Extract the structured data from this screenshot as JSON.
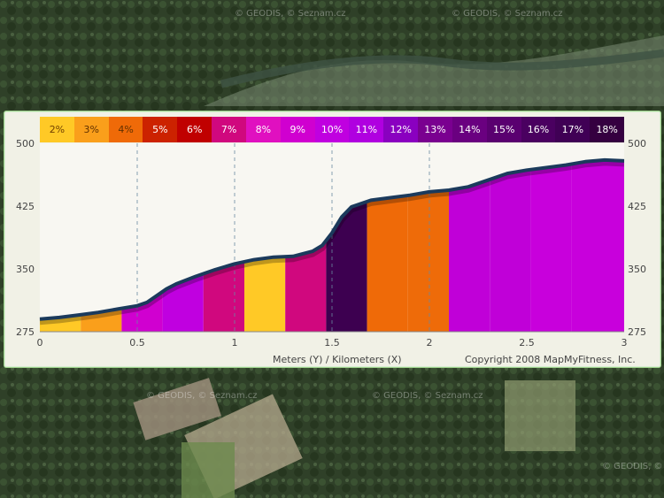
{
  "map": {
    "watermark": "© GEODIS, © Seznam.cz"
  },
  "legend": [
    {
      "label": "2%",
      "color": "#ffc926",
      "text": "#704000"
    },
    {
      "label": "3%",
      "color": "#fa9f1b",
      "text": "#603000"
    },
    {
      "label": "4%",
      "color": "#ef6a08",
      "text": "#603000"
    },
    {
      "label": "5%",
      "color": "#cc2200",
      "text": "#ffffff"
    },
    {
      "label": "6%",
      "color": "#c00000",
      "text": "#ffffff"
    },
    {
      "label": "7%",
      "color": "#d0087e",
      "text": "#ffffff"
    },
    {
      "label": "8%",
      "color": "#e010c0",
      "text": "#ffffff"
    },
    {
      "label": "9%",
      "color": "#d000d0",
      "text": "#ffffff"
    },
    {
      "label": "10%",
      "color": "#c000e0",
      "text": "#ffffff"
    },
    {
      "label": "11%",
      "color": "#b000e0",
      "text": "#ffffff"
    },
    {
      "label": "12%",
      "color": "#8a00c0",
      "text": "#ffffff"
    },
    {
      "label": "13%",
      "color": "#7a0090",
      "text": "#ffffff"
    },
    {
      "label": "14%",
      "color": "#6a0080",
      "text": "#ffffff"
    },
    {
      "label": "15%",
      "color": "#5a0070",
      "text": "#ffffff"
    },
    {
      "label": "16%",
      "color": "#4a0060",
      "text": "#ffffff"
    },
    {
      "label": "17%",
      "color": "#400055",
      "text": "#ffffff"
    },
    {
      "label": "18%",
      "color": "#350040",
      "text": "#ffffff"
    }
  ],
  "chart_data": {
    "type": "area",
    "title": "",
    "xlabel": "Meters (Y) / Kilometers (X)",
    "ylabel": "",
    "xlim": [
      0,
      3
    ],
    "ylim": [
      275,
      500
    ],
    "xticks": [
      0,
      0.5,
      1,
      1.5,
      2,
      2.5,
      3
    ],
    "xtick_labels": [
      "0",
      "0.5",
      "1",
      "1.5",
      "2",
      "2.5",
      "3"
    ],
    "yticks": [
      275,
      350,
      425,
      500
    ],
    "ytick_labels": [
      "275",
      "350",
      "425",
      "500"
    ],
    "x": [
      0,
      0.1,
      0.2,
      0.3,
      0.4,
      0.5,
      0.55,
      0.6,
      0.65,
      0.7,
      0.8,
      0.9,
      1.0,
      1.1,
      1.2,
      1.3,
      1.4,
      1.45,
      1.5,
      1.55,
      1.6,
      1.7,
      1.8,
      1.9,
      2.0,
      2.1,
      2.2,
      2.3,
      2.4,
      2.5,
      2.6,
      2.7,
      2.8,
      2.9,
      3.0
    ],
    "elevation": [
      290,
      292,
      295,
      298,
      302,
      306,
      310,
      318,
      326,
      332,
      341,
      349,
      356,
      361,
      364,
      365,
      371,
      378,
      393,
      412,
      424,
      432,
      435,
      438,
      442,
      444,
      448,
      456,
      464,
      468,
      471,
      474,
      478,
      480,
      479
    ],
    "segments": [
      {
        "x0": 0.0,
        "x1": 0.21,
        "grade": "2%",
        "color": "#ffc926"
      },
      {
        "x0": 0.21,
        "x1": 0.42,
        "grade": "3%",
        "color": "#fa9f1b"
      },
      {
        "x0": 0.42,
        "x1": 0.63,
        "grade": "9%",
        "color": "#d000d0"
      },
      {
        "x0": 0.63,
        "x1": 0.84,
        "grade": "10%",
        "color": "#c000e0"
      },
      {
        "x0": 0.84,
        "x1": 1.05,
        "grade": "8%",
        "color": "#d0087e"
      },
      {
        "x0": 1.05,
        "x1": 1.26,
        "grade": "2%",
        "color": "#ffc926"
      },
      {
        "x0": 1.26,
        "x1": 1.47,
        "grade": "7%",
        "color": "#d0087e"
      },
      {
        "x0": 1.47,
        "x1": 1.68,
        "grade": "16%",
        "color": "#3d0050"
      },
      {
        "x0": 1.68,
        "x1": 1.89,
        "grade": "4%",
        "color": "#ef6a08"
      },
      {
        "x0": 1.89,
        "x1": 2.1,
        "grade": "4%",
        "color": "#ee6b09"
      },
      {
        "x0": 2.1,
        "x1": 2.31,
        "grade": "10%",
        "color": "#c000d8"
      },
      {
        "x0": 2.31,
        "x1": 2.52,
        "grade": "10%",
        "color": "#c000d8"
      },
      {
        "x0": 2.52,
        "x1": 2.73,
        "grade": "9%",
        "color": "#c800dc"
      },
      {
        "x0": 2.73,
        "x1": 3.0,
        "grade": "9%",
        "color": "#c800dc"
      }
    ]
  },
  "footer": {
    "axis_label": "Meters (Y) / Kilometers (X)",
    "copyright": "Copyright 2008 MapMyFitness, Inc."
  }
}
